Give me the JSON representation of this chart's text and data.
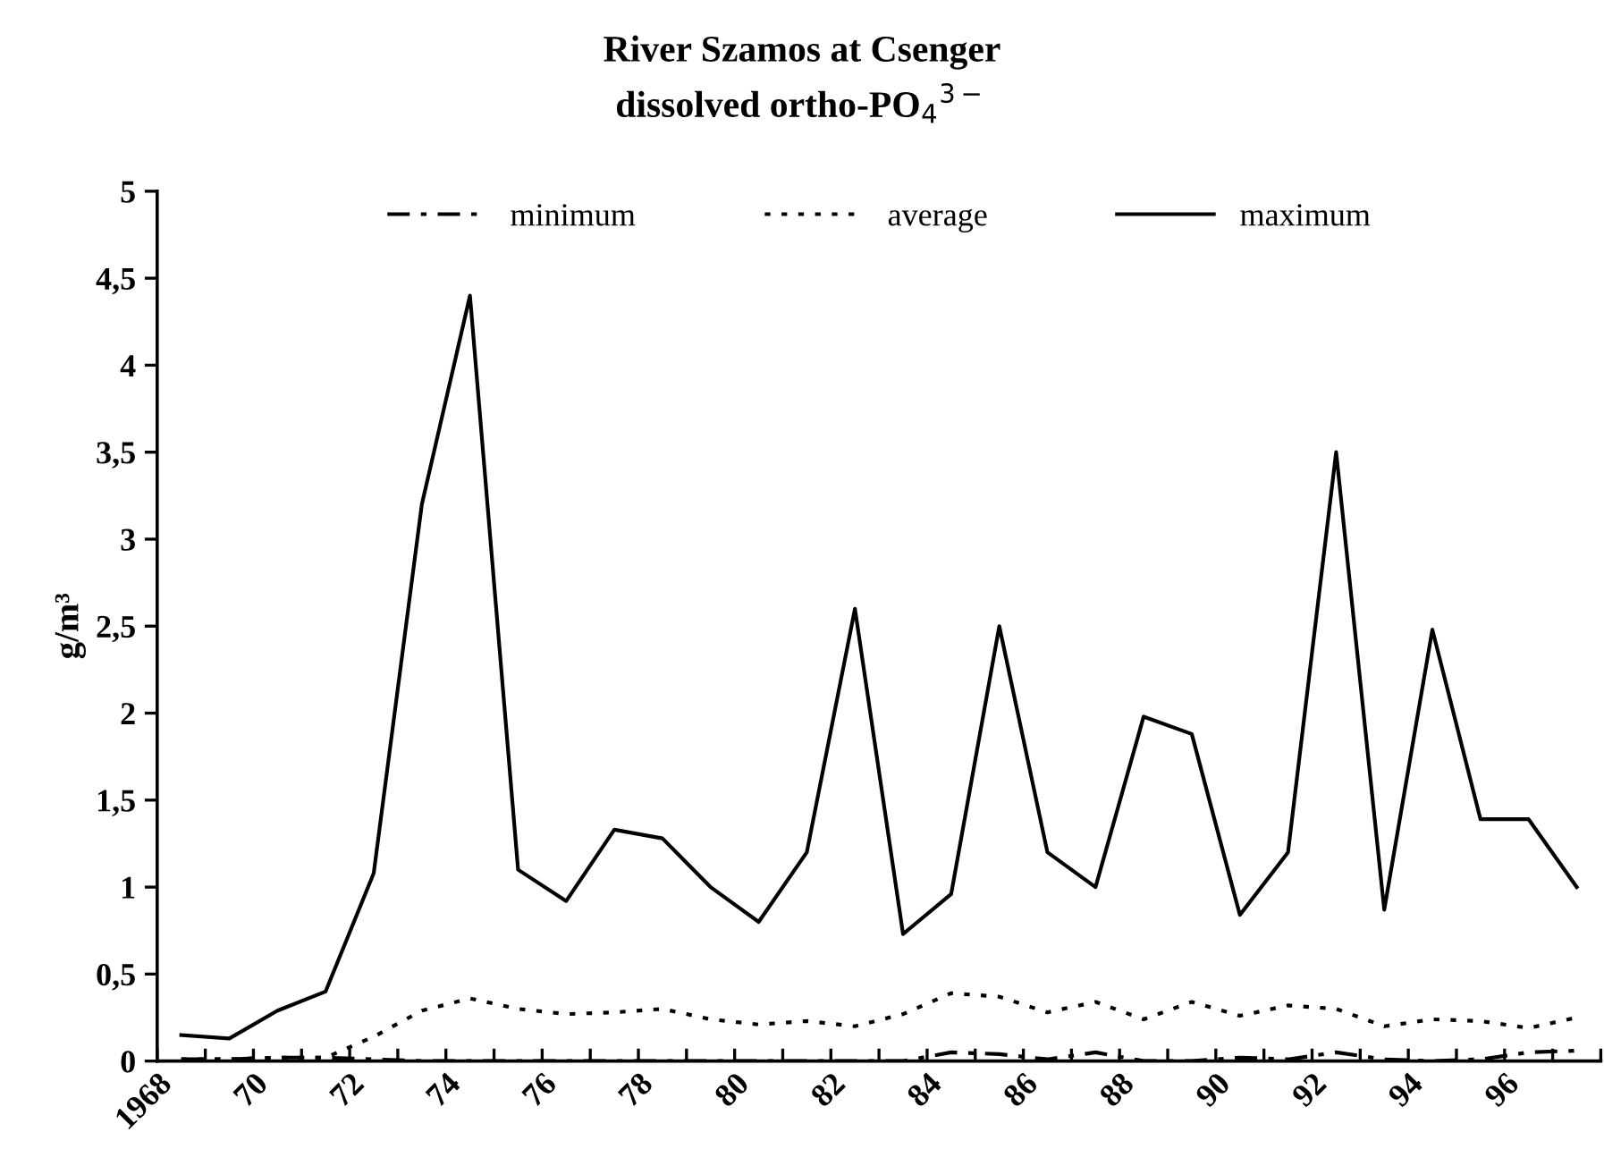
{
  "chart_data": {
    "type": "line",
    "title": "River Szamos at Csenger",
    "subtitle": "dissolved ortho-PO$_{4}$$^{3−}$",
    "ylabel": "g/m³",
    "x": [
      1968.5,
      1969.5,
      1970.5,
      1971.5,
      1972.5,
      1973.5,
      1974.5,
      1975.5,
      1976.5,
      1977.5,
      1978.5,
      1979.5,
      1980.5,
      1981.5,
      1982.5,
      1983.5,
      1984.5,
      1985.5,
      1986.5,
      1987.5,
      1988.5,
      1989.5,
      1990.5,
      1991.5,
      1992.5,
      1993.5,
      1994.5,
      1995.5,
      1996.5,
      1997.5
    ],
    "series": [
      {
        "name": "minimum",
        "color": "#000000",
        "line_style": "dashdot",
        "values": [
          0.01,
          0.01,
          0.02,
          0.02,
          0.01,
          0,
          0,
          0,
          0,
          0,
          0,
          0,
          0,
          0,
          0,
          0,
          0.05,
          0.04,
          0.01,
          0.05,
          0,
          0,
          0.02,
          0.01,
          0.05,
          0.01,
          0,
          0.01,
          0.05,
          0.06
        ]
      },
      {
        "name": "average",
        "color": "#000000",
        "line_style": "dotted",
        "values": [
          0.01,
          0.01,
          0.02,
          0.02,
          0.14,
          0.29,
          0.36,
          0.3,
          0.27,
          0.28,
          0.3,
          0.24,
          0.21,
          0.23,
          0.2,
          0.27,
          0.39,
          0.37,
          0.28,
          0.34,
          0.24,
          0.34,
          0.26,
          0.32,
          0.3,
          0.2,
          0.24,
          0.23,
          0.19,
          0.25
        ]
      },
      {
        "name": "maximum",
        "color": "#000000",
        "line_style": "solid",
        "values": [
          0.15,
          0.13,
          0.29,
          0.4,
          1.08,
          3.2,
          4.4,
          1.1,
          0.92,
          1.33,
          1.28,
          1.0,
          0.8,
          1.2,
          2.6,
          0.73,
          0.96,
          2.5,
          1.2,
          1.0,
          1.98,
          1.88,
          0.84,
          1.2,
          3.5,
          0.87,
          2.48,
          1.39,
          1.39,
          1.0
        ]
      }
    ],
    "xlim": [
      1968,
      1998
    ],
    "xticks": [
      {
        "value": 1968,
        "label": "1968"
      },
      {
        "value": 1969,
        "label": null
      },
      {
        "value": 1970,
        "label": "70"
      },
      {
        "value": 1971,
        "label": null
      },
      {
        "value": 1972,
        "label": "72"
      },
      {
        "value": 1973,
        "label": null
      },
      {
        "value": 1974,
        "label": "74"
      },
      {
        "value": 1975,
        "label": null
      },
      {
        "value": 1976,
        "label": "76"
      },
      {
        "value": 1977,
        "label": null
      },
      {
        "value": 1978,
        "label": "78"
      },
      {
        "value": 1979,
        "label": null
      },
      {
        "value": 1980,
        "label": "80"
      },
      {
        "value": 1981,
        "label": null
      },
      {
        "value": 1982,
        "label": "82"
      },
      {
        "value": 1983,
        "label": null
      },
      {
        "value": 1984,
        "label": "84"
      },
      {
        "value": 1985,
        "label": null
      },
      {
        "value": 1986,
        "label": "86"
      },
      {
        "value": 1987,
        "label": null
      },
      {
        "value": 1988,
        "label": "88"
      },
      {
        "value": 1989,
        "label": null
      },
      {
        "value": 1990,
        "label": "90"
      },
      {
        "value": 1991,
        "label": null
      },
      {
        "value": 1992,
        "label": "92"
      },
      {
        "value": 1993,
        "label": null
      },
      {
        "value": 1994,
        "label": "94"
      },
      {
        "value": 1995,
        "label": null
      },
      {
        "value": 1996,
        "label": "96"
      },
      {
        "value": 1997,
        "label": null
      },
      {
        "value": 1998,
        "label": null
      }
    ],
    "ylim": [
      0,
      5
    ],
    "yticks": [
      0,
      {
        "value": 0.5,
        "label": "0,5"
      },
      1,
      {
        "value": 1.5,
        "label": "1,5"
      },
      2,
      {
        "value": 2.5,
        "label": "2,5"
      },
      3,
      {
        "value": 3.5,
        "label": "3,5"
      },
      4,
      {
        "value": 4.5,
        "label": "4,5"
      },
      5
    ],
    "grid": false,
    "legend": "top",
    "marker": "none"
  }
}
